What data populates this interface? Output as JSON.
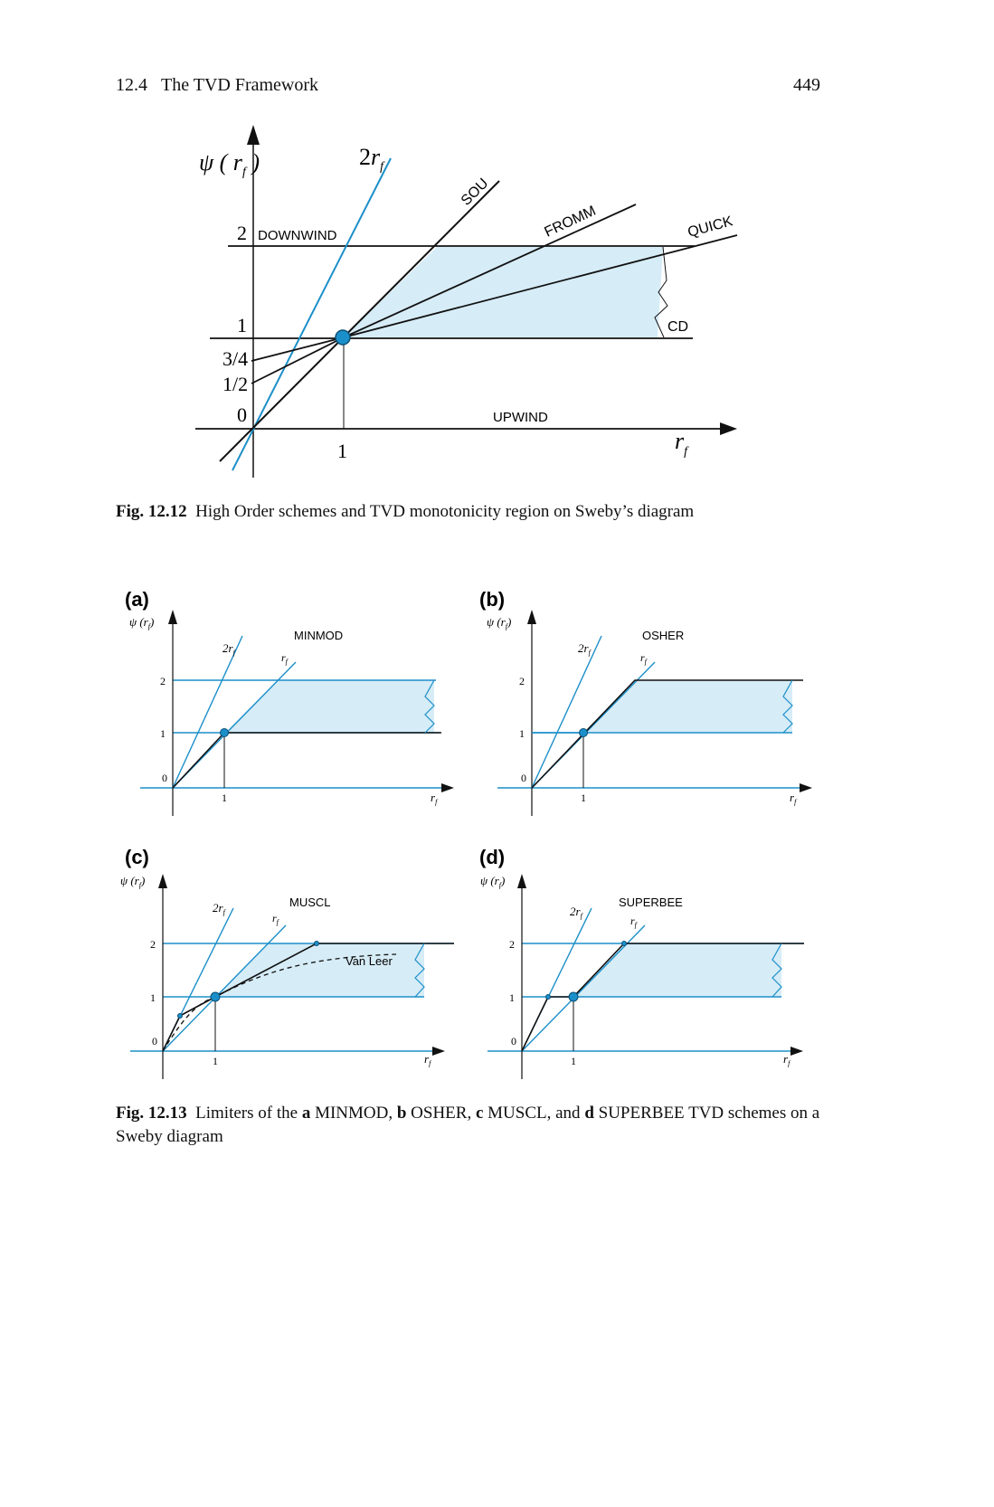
{
  "header": {
    "section": "12.4",
    "section_title": "The TVD Framework",
    "page_number": "449"
  },
  "colors": {
    "blue": "#1b8fc9",
    "region_fill": "#d6ecf7",
    "black": "#111111"
  },
  "fig12": {
    "ylabel": "ψ (r_f)",
    "xlabel": "r_f",
    "tick_labels": [
      "0",
      "1/2",
      "3/4",
      "1",
      "2"
    ],
    "x_tick": "1",
    "lines": {
      "two_r": "2r_f",
      "sou": "SOU",
      "fromm": "FROMM",
      "quick": "QUICK",
      "cd": "CD",
      "downwind": "DOWNWIND",
      "upwind": "UPWIND"
    },
    "caption_label": "Fig. 12.12",
    "caption_text": "High Order schemes and TVD monotonicity region on Sweby’s diagram"
  },
  "fig13": {
    "panels": [
      {
        "letter": "(a)",
        "name": "MINMOD"
      },
      {
        "letter": "(b)",
        "name": "OSHER"
      },
      {
        "letter": "(c)",
        "name": "MUSCL"
      },
      {
        "letter": "(d)",
        "name": "SUPERBEE"
      }
    ],
    "ylabel": "ψ (r_f)",
    "xlabel": "r_f",
    "two_r": "2r_f",
    "r": "r_f",
    "ticks_y": [
      "0",
      "1",
      "2"
    ],
    "tick_x": "1",
    "van_leer": "Van Leer",
    "caption_label": "Fig. 12.13",
    "caption_parts": [
      {
        "t": "Limiters of the ",
        "b": false
      },
      {
        "t": "a",
        "b": true
      },
      {
        "t": " MINMOD, ",
        "b": false
      },
      {
        "t": "b",
        "b": true
      },
      {
        "t": " OSHER, ",
        "b": false
      },
      {
        "t": "c",
        "b": true
      },
      {
        "t": " MUSCL, and ",
        "b": false
      },
      {
        "t": "d",
        "b": true
      },
      {
        "t": " SUPERBEE TVD schemes on a Sweby diagram",
        "b": false
      }
    ]
  },
  "chart_data": [
    {
      "type": "line",
      "title": "",
      "xlabel": "r_f",
      "ylabel": "ψ (r_f)",
      "series": [
        {
          "name": "2r_f",
          "x": [
            0,
            1.4
          ],
          "y": [
            0,
            2.8
          ]
        },
        {
          "name": "SOU",
          "x": [
            0,
            1,
            2.7
          ],
          "y": [
            0,
            1,
            2.7
          ]
        },
        {
          "name": "FROMM",
          "x": [
            0,
            1,
            3.25
          ],
          "y": [
            0.5,
            1,
            2.12
          ]
        },
        {
          "name": "QUICK",
          "x": [
            0,
            1,
            4.25
          ],
          "y": [
            0.75,
            1,
            1.81
          ]
        },
        {
          "name": "CD",
          "x": [
            0,
            4.5
          ],
          "y": [
            1,
            1
          ]
        },
        {
          "name": "DOWNWIND",
          "x": [
            0,
            4.5
          ],
          "y": [
            2,
            2
          ]
        },
        {
          "name": "UPWIND",
          "x": [
            0,
            4.5
          ],
          "y": [
            0,
            0
          ]
        }
      ]
    },
    {
      "type": "line",
      "title": "MINMOD",
      "series": [
        {
          "name": "",
          "x": [
            0,
            1,
            4
          ],
          "y": [
            0,
            1,
            1
          ]
        }
      ]
    },
    {
      "type": "line",
      "title": "OSHER",
      "series": [
        {
          "name": "",
          "x": [
            0,
            2,
            5
          ],
          "y": [
            0,
            2,
            2
          ]
        }
      ]
    },
    {
      "type": "line",
      "title": "MUSCL",
      "series": [
        {
          "name": "",
          "x": [
            0,
            0.33,
            1,
            3,
            5
          ],
          "y": [
            0,
            0.67,
            1,
            2,
            2
          ]
        },
        {
          "name": "Van Leer",
          "x": [
            0,
            0.5,
            1,
            2,
            3,
            4.5
          ],
          "y": [
            0,
            0.67,
            1,
            1.33,
            1.5,
            1.64
          ]
        }
      ]
    },
    {
      "type": "line",
      "title": "SUPERBEE",
      "series": [
        {
          "name": "",
          "x": [
            0,
            0.5,
            1,
            2,
            5
          ],
          "y": [
            0,
            1,
            1,
            2,
            2
          ]
        }
      ]
    }
  ]
}
